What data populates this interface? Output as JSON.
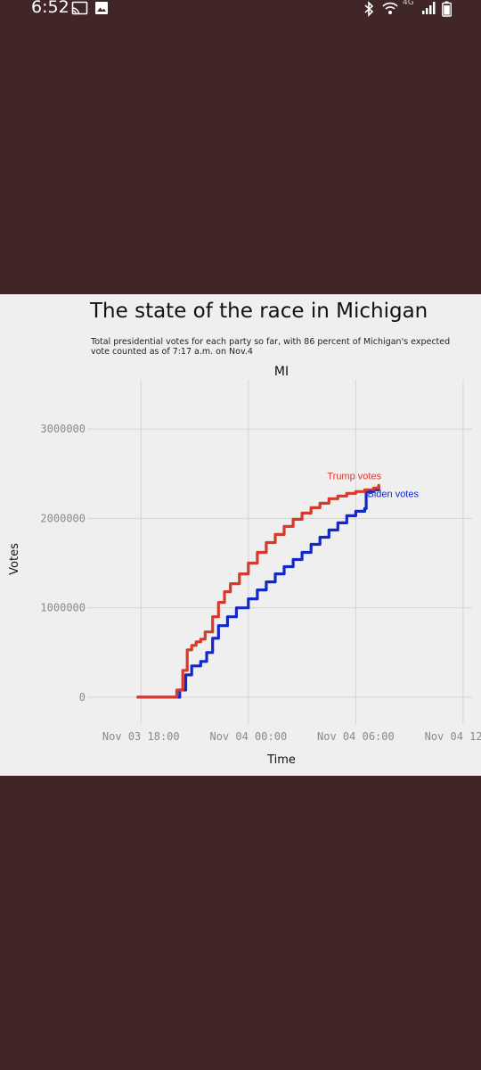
{
  "status_bar": {
    "time": "6:52",
    "icons": [
      "cast-icon",
      "image-icon",
      "bluetooth-icon",
      "wifi-icon",
      "signal-icon",
      "battery-icon"
    ],
    "network": "4G"
  },
  "colors": {
    "background": "#412628",
    "panel": "#efefef",
    "trump": "#d63a2c",
    "biden": "#1428c8"
  },
  "chart_data": {
    "type": "line",
    "title": "The state of the race in Michigan",
    "subtitle": "Total presidential votes for each party so far, with 86 percent of Michigan's expected vote counted as of 7:17 a.m. on Nov.4",
    "facet_label": "MI",
    "xlabel": "Time",
    "ylabel": "Votes",
    "xlim": [
      "2020-11-03T15:00",
      "2020-11-04T12:30"
    ],
    "ylim": [
      -300000,
      3550000
    ],
    "x_ticks": [
      {
        "value": "2020-11-03T18:00",
        "label": "Nov 03 18:00"
      },
      {
        "value": "2020-11-04T00:00",
        "label": "Nov 04 00:00"
      },
      {
        "value": "2020-11-04T06:00",
        "label": "Nov 04 06:00"
      },
      {
        "value": "2020-11-04T12:00",
        "label": "Nov 04 12:00"
      }
    ],
    "y_ticks": [
      {
        "value": 0,
        "label": "0"
      },
      {
        "value": 1000000,
        "label": "1000000"
      },
      {
        "value": 2000000,
        "label": "2000000"
      },
      {
        "value": 3000000,
        "label": "3000000"
      }
    ],
    "grid": true,
    "series": [
      {
        "name": "Trump votes",
        "color": "#d63a2c",
        "x": [
          "2020-11-03T17:50",
          "2020-11-03T19:50",
          "2020-11-03T20:00",
          "2020-11-03T20:20",
          "2020-11-03T20:35",
          "2020-11-03T20:50",
          "2020-11-03T21:05",
          "2020-11-03T21:20",
          "2020-11-03T21:35",
          "2020-11-03T22:00",
          "2020-11-03T22:20",
          "2020-11-03T22:40",
          "2020-11-03T23:00",
          "2020-11-03T23:30",
          "2020-11-04T00:00",
          "2020-11-04T00:30",
          "2020-11-04T01:00",
          "2020-11-04T01:30",
          "2020-11-04T02:00",
          "2020-11-04T02:30",
          "2020-11-04T03:00",
          "2020-11-04T03:30",
          "2020-11-04T04:00",
          "2020-11-04T04:30",
          "2020-11-04T05:00",
          "2020-11-04T05:30",
          "2020-11-04T06:00",
          "2020-11-04T06:30",
          "2020-11-04T07:00",
          "2020-11-04T07:17"
        ],
        "y": [
          0,
          0,
          80000,
          300000,
          530000,
          580000,
          620000,
          650000,
          730000,
          900000,
          1060000,
          1180000,
          1270000,
          1380000,
          1500000,
          1620000,
          1730000,
          1820000,
          1910000,
          1990000,
          2060000,
          2120000,
          2170000,
          2220000,
          2250000,
          2280000,
          2300000,
          2320000,
          2340000,
          2370000
        ]
      },
      {
        "name": "Biden votes",
        "color": "#1428c8",
        "x": [
          "2020-11-03T17:50",
          "2020-11-03T19:50",
          "2020-11-03T20:10",
          "2020-11-03T20:30",
          "2020-11-03T20:50",
          "2020-11-03T21:20",
          "2020-11-03T21:40",
          "2020-11-03T22:00",
          "2020-11-03T22:20",
          "2020-11-03T22:50",
          "2020-11-03T23:20",
          "2020-11-04T00:00",
          "2020-11-04T00:30",
          "2020-11-04T01:00",
          "2020-11-04T01:30",
          "2020-11-04T02:00",
          "2020-11-04T02:30",
          "2020-11-04T03:00",
          "2020-11-04T03:30",
          "2020-11-04T04:00",
          "2020-11-04T04:30",
          "2020-11-04T05:00",
          "2020-11-04T05:30",
          "2020-11-04T06:00",
          "2020-11-04T06:30",
          "2020-11-04T06:35",
          "2020-11-04T07:00",
          "2020-11-04T07:17"
        ],
        "y": [
          0,
          0,
          80000,
          250000,
          350000,
          400000,
          500000,
          660000,
          800000,
          900000,
          1000000,
          1100000,
          1200000,
          1290000,
          1380000,
          1460000,
          1540000,
          1620000,
          1710000,
          1790000,
          1870000,
          1950000,
          2030000,
          2080000,
          2110000,
          2300000,
          2320000,
          2360000
        ]
      }
    ],
    "annotations": [
      {
        "text": "Trump votes",
        "x": "2020-11-04T05:55",
        "y": 2480000,
        "color": "#d63a2c"
      },
      {
        "text": "Biden votes",
        "x": "2020-11-04T08:05",
        "y": 2280000,
        "color": "#1428c8"
      }
    ]
  }
}
